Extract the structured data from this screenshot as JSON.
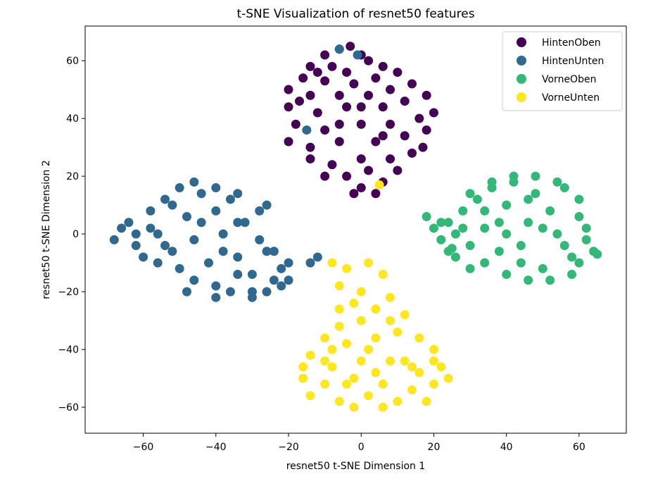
{
  "chart_data": {
    "type": "scatter",
    "title": "t-SNE Visualization of resnet50 features",
    "xlabel": "resnet50 t-SNE Dimension 1",
    "ylabel": "resnet50 t-SNE Dimension 2",
    "xlim": [
      -76,
      73
    ],
    "ylim": [
      -69,
      72
    ],
    "xticks": [
      -60,
      -40,
      -20,
      0,
      20,
      40,
      60
    ],
    "xtick_labels": [
      "−60",
      "−40",
      "−20",
      "0",
      "20",
      "40",
      "60"
    ],
    "yticks": [
      -60,
      -40,
      -20,
      0,
      20,
      40,
      60
    ],
    "ytick_labels": [
      "−60",
      "−40",
      "−20",
      "0",
      "20",
      "40",
      "60"
    ],
    "grid": false,
    "legend_position": "top-right",
    "series": [
      {
        "name": "HintenOben",
        "color": "#440154",
        "points": [
          [
            -6,
            64
          ],
          [
            -3,
            65
          ],
          [
            -10,
            62
          ],
          [
            0,
            62
          ],
          [
            -14,
            58
          ],
          [
            -8,
            58
          ],
          [
            2,
            60
          ],
          [
            -4,
            56
          ],
          [
            6,
            58
          ],
          [
            -16,
            54
          ],
          [
            -10,
            53
          ],
          [
            -2,
            52
          ],
          [
            4,
            54
          ],
          [
            10,
            56
          ],
          [
            -20,
            50
          ],
          [
            -14,
            48
          ],
          [
            -6,
            48
          ],
          [
            2,
            48
          ],
          [
            8,
            50
          ],
          [
            14,
            52
          ],
          [
            -20,
            44
          ],
          [
            -12,
            42
          ],
          [
            -4,
            44
          ],
          [
            6,
            44
          ],
          [
            12,
            46
          ],
          [
            18,
            48
          ],
          [
            -18,
            38
          ],
          [
            -10,
            36
          ],
          [
            0,
            38
          ],
          [
            8,
            38
          ],
          [
            16,
            40
          ],
          [
            20,
            42
          ],
          [
            -20,
            32
          ],
          [
            -14,
            30
          ],
          [
            -6,
            32
          ],
          [
            4,
            32
          ],
          [
            12,
            34
          ],
          [
            18,
            36
          ],
          [
            -14,
            26
          ],
          [
            -8,
            24
          ],
          [
            0,
            26
          ],
          [
            8,
            26
          ],
          [
            14,
            28
          ],
          [
            -10,
            20
          ],
          [
            -4,
            20
          ],
          [
            2,
            22
          ],
          [
            6,
            18
          ],
          [
            0,
            16
          ],
          [
            -2,
            14
          ],
          [
            4,
            14
          ],
          [
            10,
            22
          ],
          [
            -17,
            46
          ],
          [
            17,
            30
          ],
          [
            -12,
            56
          ],
          [
            0,
            44
          ],
          [
            -6,
            38
          ],
          [
            6,
            34
          ]
        ]
      },
      {
        "name": "HintenUnten",
        "color": "#31688e",
        "points": [
          [
            -6,
            64
          ],
          [
            -1,
            62
          ],
          [
            -15,
            36
          ],
          [
            -68,
            -2
          ],
          [
            -64,
            4
          ],
          [
            -62,
            -4
          ],
          [
            -58,
            8
          ],
          [
            -56,
            0
          ],
          [
            -54,
            12
          ],
          [
            -52,
            -6
          ],
          [
            -50,
            16
          ],
          [
            -48,
            6
          ],
          [
            -46,
            -2
          ],
          [
            -44,
            14
          ],
          [
            -42,
            -10
          ],
          [
            -40,
            8
          ],
          [
            -38,
            0
          ],
          [
            -36,
            12
          ],
          [
            -34,
            -8
          ],
          [
            -32,
            4
          ],
          [
            -30,
            -14
          ],
          [
            -28,
            -2
          ],
          [
            -26,
            10
          ],
          [
            -24,
            -6
          ],
          [
            -22,
            -12
          ],
          [
            -60,
            -8
          ],
          [
            -56,
            -10
          ],
          [
            -50,
            -12
          ],
          [
            -46,
            -16
          ],
          [
            -40,
            -18
          ],
          [
            -36,
            -20
          ],
          [
            -30,
            -20
          ],
          [
            -26,
            -20
          ],
          [
            -22,
            -18
          ],
          [
            -20,
            -16
          ],
          [
            -28,
            8
          ],
          [
            -34,
            14
          ],
          [
            -40,
            16
          ],
          [
            -46,
            18
          ],
          [
            -52,
            10
          ],
          [
            -58,
            2
          ],
          [
            -62,
            0
          ],
          [
            -48,
            -20
          ],
          [
            -40,
            -22
          ],
          [
            -30,
            -22
          ],
          [
            -20,
            -10
          ],
          [
            -14,
            -10
          ],
          [
            -12,
            -8
          ],
          [
            -44,
            4
          ],
          [
            -38,
            -6
          ],
          [
            -34,
            -14
          ],
          [
            -54,
            -4
          ],
          [
            -66,
            2
          ],
          [
            -26,
            -6
          ],
          [
            -24,
            -16
          ],
          [
            -34,
            4
          ]
        ]
      },
      {
        "name": "VorneOben",
        "color": "#35b779",
        "points": [
          [
            18,
            6
          ],
          [
            20,
            2
          ],
          [
            22,
            -2
          ],
          [
            24,
            4
          ],
          [
            26,
            0
          ],
          [
            28,
            8
          ],
          [
            30,
            -4
          ],
          [
            32,
            12
          ],
          [
            34,
            2
          ],
          [
            36,
            16
          ],
          [
            38,
            -6
          ],
          [
            40,
            10
          ],
          [
            42,
            18
          ],
          [
            44,
            -10
          ],
          [
            46,
            4
          ],
          [
            48,
            14
          ],
          [
            50,
            -12
          ],
          [
            52,
            8
          ],
          [
            54,
            0
          ],
          [
            56,
            16
          ],
          [
            58,
            -8
          ],
          [
            60,
            6
          ],
          [
            62,
            -2
          ],
          [
            64,
            -6
          ],
          [
            30,
            14
          ],
          [
            34,
            -10
          ],
          [
            40,
            -14
          ],
          [
            46,
            -16
          ],
          [
            52,
            -16
          ],
          [
            58,
            -14
          ],
          [
            62,
            2
          ],
          [
            60,
            12
          ],
          [
            54,
            18
          ],
          [
            48,
            20
          ],
          [
            42,
            20
          ],
          [
            36,
            18
          ],
          [
            24,
            -6
          ],
          [
            26,
            -8
          ],
          [
            30,
            -12
          ],
          [
            28,
            2
          ],
          [
            38,
            4
          ],
          [
            44,
            -4
          ],
          [
            50,
            2
          ],
          [
            56,
            -4
          ],
          [
            46,
            12
          ],
          [
            40,
            0
          ],
          [
            34,
            8
          ],
          [
            22,
            4
          ],
          [
            65,
            -7
          ],
          [
            25,
            -5
          ],
          [
            60,
            -10
          ]
        ]
      },
      {
        "name": "VorneUnten",
        "color": "#fde725",
        "points": [
          [
            5,
            17
          ],
          [
            -8,
            -10
          ],
          [
            -4,
            -12
          ],
          [
            2,
            -10
          ],
          [
            6,
            -14
          ],
          [
            -6,
            -18
          ],
          [
            0,
            -20
          ],
          [
            -2,
            -24
          ],
          [
            4,
            -26
          ],
          [
            8,
            -22
          ],
          [
            12,
            -28
          ],
          [
            0,
            -30
          ],
          [
            -6,
            -32
          ],
          [
            -10,
            -36
          ],
          [
            -4,
            -38
          ],
          [
            4,
            -36
          ],
          [
            10,
            -34
          ],
          [
            16,
            -36
          ],
          [
            20,
            -40
          ],
          [
            -14,
            -42
          ],
          [
            -8,
            -46
          ],
          [
            0,
            -44
          ],
          [
            8,
            -44
          ],
          [
            14,
            -46
          ],
          [
            22,
            -46
          ],
          [
            -16,
            -50
          ],
          [
            -10,
            -52
          ],
          [
            -2,
            -50
          ],
          [
            6,
            -52
          ],
          [
            14,
            -54
          ],
          [
            20,
            -52
          ],
          [
            -14,
            -56
          ],
          [
            -6,
            -58
          ],
          [
            2,
            -56
          ],
          [
            10,
            -58
          ],
          [
            18,
            -58
          ],
          [
            24,
            -50
          ],
          [
            -16,
            -46
          ],
          [
            -8,
            -40
          ],
          [
            20,
            -44
          ],
          [
            -2,
            -60
          ],
          [
            6,
            -60
          ],
          [
            12,
            -44
          ],
          [
            4,
            -48
          ],
          [
            -4,
            -52
          ],
          [
            -10,
            -44
          ],
          [
            16,
            -48
          ],
          [
            8,
            -30
          ],
          [
            -6,
            -26
          ],
          [
            2,
            -40
          ]
        ]
      }
    ]
  }
}
